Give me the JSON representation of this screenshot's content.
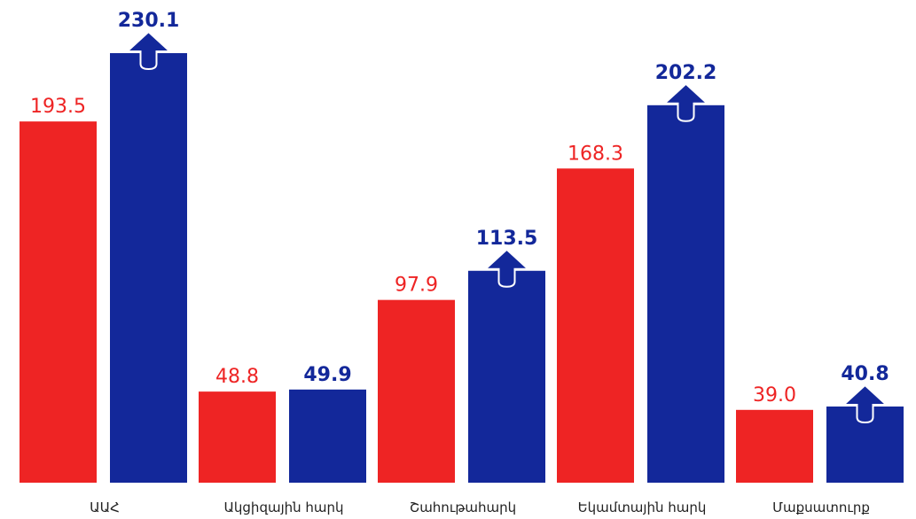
{
  "chart_data": {
    "type": "bar",
    "categories": [
      "ԱԱՀ",
      "Ակցիզային հարկ",
      "Շահութահարկ",
      "Եկամտային հարկ",
      "Մաքսատուրք"
    ],
    "series": [
      {
        "color": "#ee2424",
        "values": [
          193.5,
          48.8,
          97.9,
          168.3,
          39.0
        ],
        "value_labels": [
          "193.5",
          "48.8",
          "97.9",
          "168.3",
          "39.0"
        ]
      },
      {
        "color": "#13289a",
        "values": [
          230.1,
          49.9,
          113.5,
          202.2,
          40.8
        ]
      }
    ]
  }
}
